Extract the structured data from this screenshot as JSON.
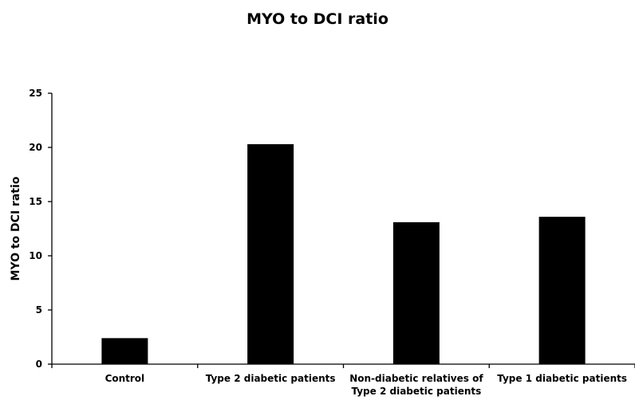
{
  "chart_data": {
    "type": "bar",
    "title": "MYO to DCI ratio",
    "xlabel": "",
    "ylabel": "MYO to DCI ratio",
    "categories": [
      [
        "Control"
      ],
      [
        "Type 2 diabetic patients"
      ],
      [
        "Non-diabetic relatives of",
        "Type 2 diabetic patients"
      ],
      [
        "Type 1 diabetic patients"
      ]
    ],
    "values": [
      2.4,
      20.3,
      13.1,
      13.6
    ],
    "ylim": [
      0,
      25
    ],
    "yticks": [
      0,
      5,
      10,
      15,
      20,
      25
    ],
    "bar_color": "#000000",
    "grid": false,
    "legend": "none"
  }
}
